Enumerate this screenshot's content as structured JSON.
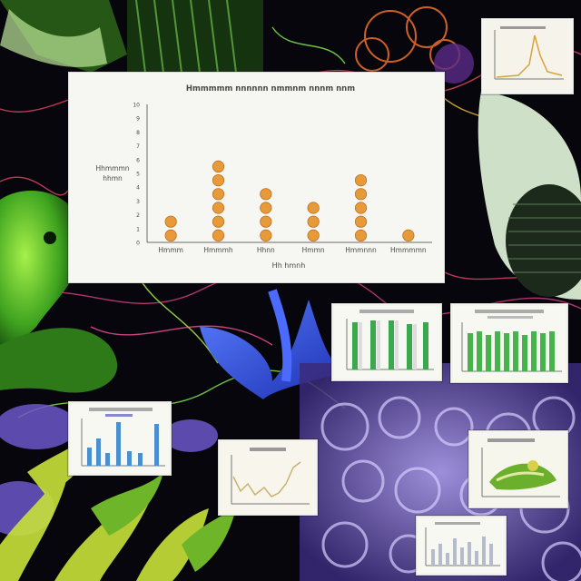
{
  "main_chart": {
    "title": "Hmmmmm nnnnnn nmmnm nnnm nnm",
    "ylabel": [
      "Hhmmmn",
      "hhmn"
    ],
    "xlabel": "Hh hmnh",
    "chart_data": {
      "type": "scatter",
      "categories": [
        "Hmmm",
        "Hmmmh",
        "Hhnn",
        "Hmmn",
        "Hmmnnn",
        "Hmmmmn"
      ],
      "stacked_counts": [
        2,
        6,
        4,
        3,
        5,
        1
      ],
      "ylim": [
        0,
        10
      ],
      "yticks": [
        0,
        1,
        2,
        3,
        4,
        5,
        6,
        7,
        8,
        9,
        10
      ],
      "grid": false,
      "marker_color": "#e79a3a"
    }
  },
  "colors": {
    "bg": "#05040a",
    "card": "#f4f5f1",
    "green": "#3aa84d",
    "blue": "#4a8fd0"
  }
}
